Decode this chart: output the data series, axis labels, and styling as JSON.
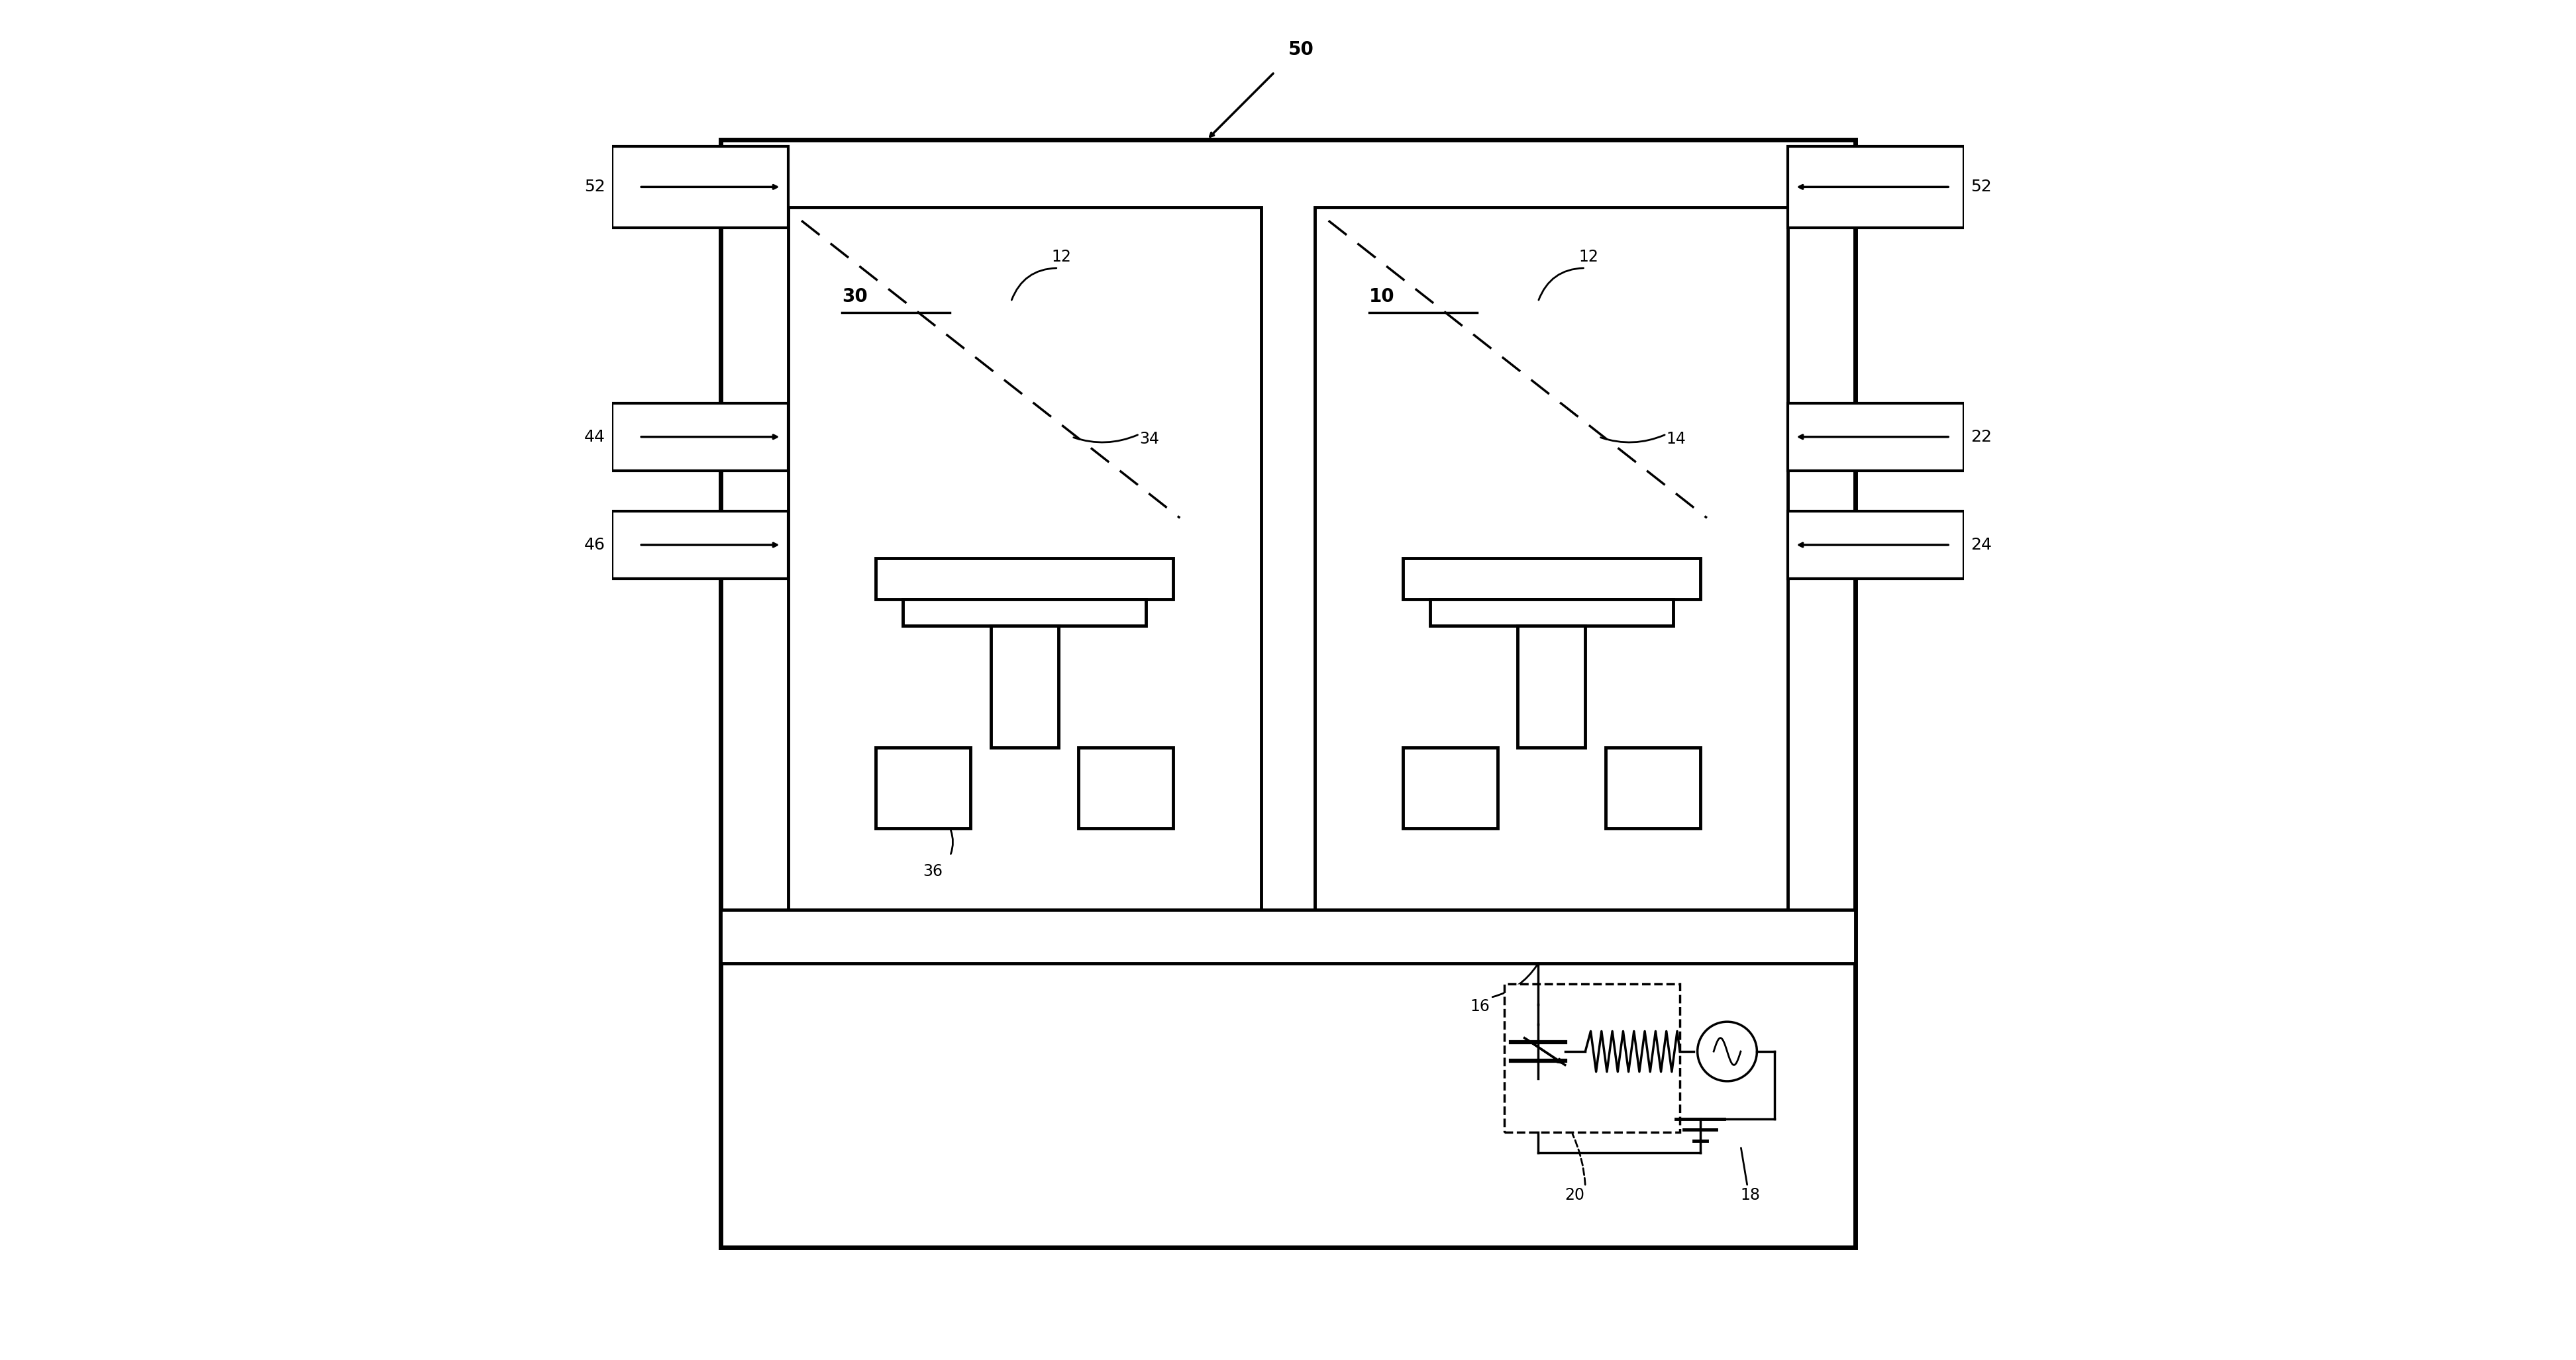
{
  "fig_width": 38.89,
  "fig_height": 20.54,
  "bg_color": "#ffffff",
  "lc": "#000000",
  "label_50": "50",
  "label_52_L": "52",
  "label_52_R": "52",
  "label_44": "44",
  "label_46": "46",
  "label_22": "22",
  "label_24": "24",
  "label_30": "30",
  "label_10": "10",
  "label_12": "12",
  "label_34": "34",
  "label_14": "14",
  "label_36": "36",
  "label_16": "16",
  "label_20": "20",
  "label_18": "18"
}
